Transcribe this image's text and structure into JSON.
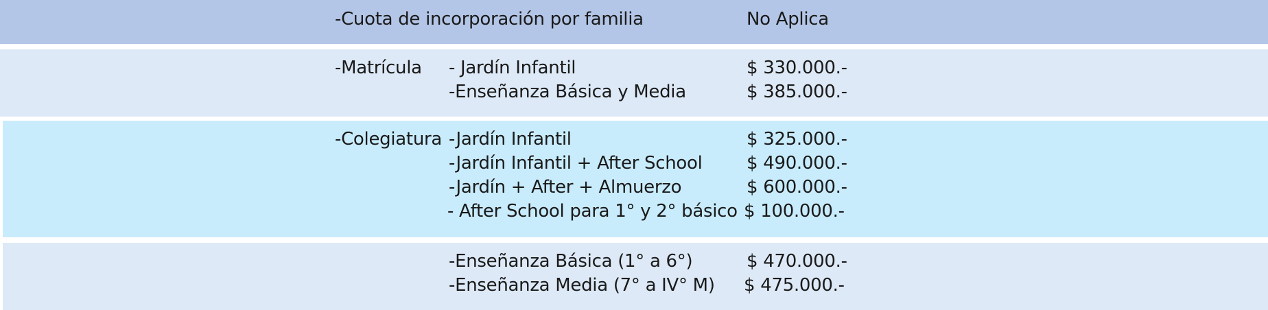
{
  "rows": [
    {
      "label": "-Cuota de incorporación por familia",
      "items": [],
      "value": "No Aplica"
    },
    {
      "label": "-Matrícula",
      "items": [
        {
          "text": "- Jardín Infantil",
          "price": "$ 330.000.-"
        },
        {
          "text": "-Enseñanza Básica y Media",
          "price": "$ 385.000.-"
        }
      ]
    },
    {
      "label": "-Colegiatura",
      "items": [
        {
          "text": "-Jardín Infantil",
          "price": "$ 325.000.-"
        },
        {
          "text": "-Jardín Infantil + After School",
          "price": "$ 490.000.-"
        },
        {
          "text": "-Jardín + After + Almuerzo",
          "price": "$ 600.000.-"
        },
        {
          "text": "- After School para 1° y 2° básico",
          "price": "$ 100.000.-"
        }
      ]
    },
    {
      "label": "",
      "items": [
        {
          "text": "-Enseñanza Básica (1° a 6°)",
          "price": "$ 470.000.-"
        },
        {
          "text": "-Enseñanza Media (7° a IV° M)",
          "price": "$ 475.000.-"
        }
      ]
    }
  ],
  "colors": {
    "header_band": "#b4c6e7",
    "light_band": "#dde9f6",
    "cyan_band": "#c9ecfd"
  }
}
